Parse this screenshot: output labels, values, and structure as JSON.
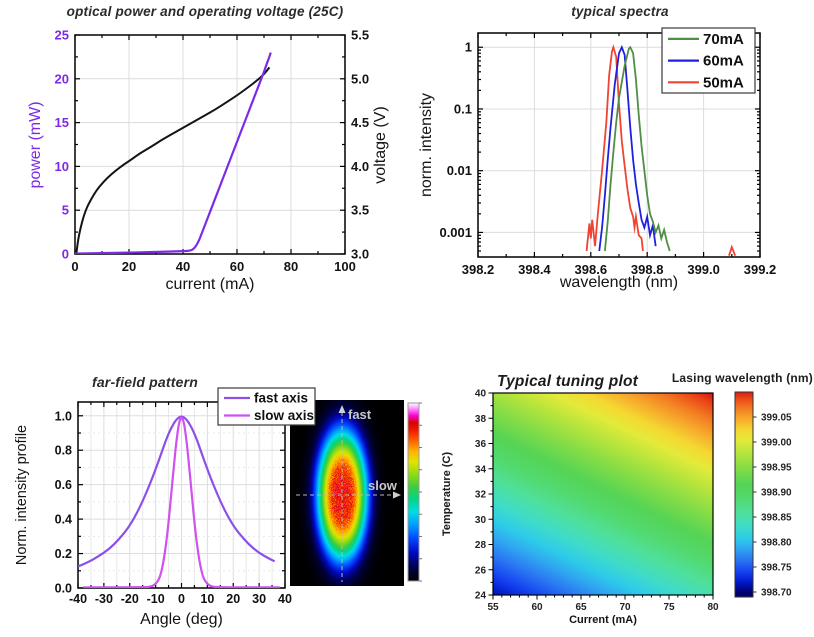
{
  "page": {
    "background": "#ffffff"
  },
  "colors": {
    "power_purple": "#7d2ae8",
    "voltage_black": "#141414",
    "fast_violet": "#8a50e8",
    "slow_magenta": "#d050f0",
    "green_70": "#4f8f44",
    "blue_60": "#1f1fe0",
    "red_50": "#f04432",
    "grid": "#dcdcdc",
    "frame": "#000000",
    "title_gray": "#2b2b2b"
  },
  "chart_data": [
    {
      "id": "liv",
      "type": "line",
      "title": "optical power and operating voltage (25C)",
      "xlabel": "current (mA)",
      "ylabel": "power (mW)",
      "ylabel2": "voltage (V)",
      "xlim": [
        0,
        100
      ],
      "xticks": [
        0,
        20,
        40,
        60,
        80,
        100
      ],
      "ylim": [
        0,
        25
      ],
      "yticks": [
        0,
        5,
        10,
        15,
        20,
        25
      ],
      "y2lim": [
        3.0,
        5.5
      ],
      "y2ticks": [
        3.0,
        3.5,
        4.0,
        4.5,
        5.0,
        5.5
      ],
      "grid": true,
      "series": [
        {
          "name": "power",
          "axis": "left",
          "color": "#7d2ae8",
          "points": [
            [
              0,
              0.05
            ],
            [
              5,
              0.08
            ],
            [
              10,
              0.1
            ],
            [
              15,
              0.13
            ],
            [
              20,
              0.16
            ],
            [
              25,
              0.2
            ],
            [
              30,
              0.24
            ],
            [
              35,
              0.28
            ],
            [
              40,
              0.32
            ],
            [
              42,
              0.36
            ],
            [
              43,
              0.42
            ],
            [
              44,
              0.6
            ],
            [
              45,
              1.0
            ],
            [
              46,
              1.6
            ],
            [
              47,
              2.4
            ],
            [
              48,
              3.2
            ],
            [
              50,
              4.8
            ],
            [
              53,
              7.2
            ],
            [
              56,
              9.6
            ],
            [
              59,
              12.0
            ],
            [
              62,
              14.4
            ],
            [
              65,
              16.8
            ],
            [
              68,
              19.2
            ],
            [
              70,
              20.8
            ],
            [
              71,
              21.7
            ],
            [
              72,
              22.5
            ],
            [
              72.5,
              23.0
            ]
          ]
        },
        {
          "name": "voltage",
          "axis": "right",
          "color": "#141414",
          "points": [
            [
              0.5,
              3.0
            ],
            [
              1,
              3.14
            ],
            [
              2,
              3.29
            ],
            [
              3,
              3.41
            ],
            [
              4,
              3.5
            ],
            [
              5,
              3.57
            ],
            [
              7,
              3.68
            ],
            [
              9,
              3.77
            ],
            [
              12,
              3.87
            ],
            [
              15,
              3.95
            ],
            [
              18,
              4.02
            ],
            [
              21,
              4.08
            ],
            [
              24,
              4.15
            ],
            [
              28,
              4.22
            ],
            [
              32,
              4.3
            ],
            [
              36,
              4.37
            ],
            [
              40,
              4.44
            ],
            [
              44,
              4.51
            ],
            [
              48,
              4.58
            ],
            [
              52,
              4.65
            ],
            [
              56,
              4.73
            ],
            [
              60,
              4.81
            ],
            [
              64,
              4.9
            ],
            [
              67,
              4.97
            ],
            [
              70,
              5.05
            ],
            [
              72,
              5.13
            ]
          ]
        }
      ]
    },
    {
      "id": "spectra",
      "type": "line",
      "title": "typical spectra",
      "xlabel": "wavelength (nm)",
      "ylabel": "norm. intensity",
      "xlim": [
        398.2,
        399.2
      ],
      "xticks": [
        "398.2",
        "398.4",
        "398.6",
        "398.8",
        "399.0",
        "399.2"
      ],
      "yscale": "log",
      "ylim": [
        0.0004,
        1.7
      ],
      "yticks": [
        "1",
        "0.1",
        "0.01",
        "0.001"
      ],
      "legend": {
        "position": "top-right",
        "entries": [
          "70mA",
          "60mA",
          "50mA"
        ]
      },
      "series": [
        {
          "name": "50mA",
          "color": "#f04432",
          "points": [
            [
              398.585,
              0.0005
            ],
            [
              398.595,
              0.0014
            ],
            [
              398.6,
              0.0008
            ],
            [
              398.605,
              0.0016
            ],
            [
              398.615,
              0.0006
            ],
            [
              398.625,
              0.002
            ],
            [
              398.64,
              0.01
            ],
            [
              398.655,
              0.06
            ],
            [
              398.665,
              0.35
            ],
            [
              398.675,
              0.85
            ],
            [
              398.68,
              1.0
            ],
            [
              398.69,
              0.7
            ],
            [
              398.7,
              0.12
            ],
            [
              398.71,
              0.03
            ],
            [
              398.72,
              0.012
            ],
            [
              398.73,
              0.005
            ],
            [
              398.74,
              0.0025
            ],
            [
              398.75,
              0.0018
            ],
            [
              398.755,
              0.0012
            ],
            [
              398.76,
              0.0018
            ],
            [
              398.77,
              0.0009
            ],
            [
              398.78,
              0.0008
            ],
            [
              398.785,
              0.0005
            ]
          ],
          "points2": [
            [
              399.09,
              0.00042
            ],
            [
              399.1,
              0.00058
            ],
            [
              399.112,
              0.00042
            ]
          ]
        },
        {
          "name": "60mA",
          "color": "#1f1fe0",
          "points": [
            [
              398.63,
              0.0005
            ],
            [
              398.64,
              0.0012
            ],
            [
              398.65,
              0.004
            ],
            [
              398.66,
              0.015
            ],
            [
              398.67,
              0.05
            ],
            [
              398.685,
              0.25
            ],
            [
              398.7,
              0.8
            ],
            [
              398.71,
              1.0
            ],
            [
              398.72,
              0.75
            ],
            [
              398.73,
              0.2
            ],
            [
              398.74,
              0.05
            ],
            [
              398.75,
              0.015
            ],
            [
              398.76,
              0.006
            ],
            [
              398.77,
              0.003
            ],
            [
              398.78,
              0.0016
            ],
            [
              398.79,
              0.0012
            ],
            [
              398.8,
              0.0018
            ],
            [
              398.81,
              0.0009
            ],
            [
              398.82,
              0.0013
            ],
            [
              398.83,
              0.0006
            ]
          ]
        },
        {
          "name": "70mA",
          "color": "#4f8f44",
          "points": [
            [
              398.65,
              0.0005
            ],
            [
              398.66,
              0.0015
            ],
            [
              398.67,
              0.006
            ],
            [
              398.68,
              0.02
            ],
            [
              398.69,
              0.06
            ],
            [
              398.7,
              0.15
            ],
            [
              398.72,
              0.5
            ],
            [
              398.735,
              0.95
            ],
            [
              398.74,
              1.0
            ],
            [
              398.75,
              0.8
            ],
            [
              398.76,
              0.3
            ],
            [
              398.77,
              0.08
            ],
            [
              398.78,
              0.025
            ],
            [
              398.79,
              0.01
            ],
            [
              398.8,
              0.004
            ],
            [
              398.81,
              0.002
            ],
            [
              398.82,
              0.0015
            ],
            [
              398.83,
              0.001
            ],
            [
              398.84,
              0.0013
            ],
            [
              398.85,
              0.0008
            ],
            [
              398.86,
              0.0011
            ],
            [
              398.87,
              0.0007
            ],
            [
              398.88,
              0.0005
            ]
          ]
        }
      ]
    },
    {
      "id": "farfield",
      "type": "line",
      "title": "far-field pattern",
      "xlabel": "Angle (deg)",
      "ylabel": "Norm. intensity profile",
      "xlim": [
        -40,
        40
      ],
      "xticks": [
        -40,
        -30,
        -20,
        -10,
        0,
        10,
        20,
        30,
        40
      ],
      "ylim": [
        0,
        1.08
      ],
      "yticks": [
        "0.0",
        "0.2",
        "0.4",
        "0.6",
        "0.8",
        "1.0"
      ],
      "legend": {
        "position": "top-right",
        "entries": [
          "fast axis",
          "slow axis"
        ]
      },
      "series": [
        {
          "name": "fast axis",
          "color": "#8a50e8",
          "points": [
            [
              -40,
              0.125
            ],
            [
              -36,
              0.15
            ],
            [
              -32,
              0.185
            ],
            [
              -28,
              0.225
            ],
            [
              -24,
              0.285
            ],
            [
              -20,
              0.36
            ],
            [
              -16,
              0.47
            ],
            [
              -12,
              0.61
            ],
            [
              -9,
              0.73
            ],
            [
              -6,
              0.86
            ],
            [
              -4,
              0.93
            ],
            [
              -2,
              0.98
            ],
            [
              0,
              1.0
            ],
            [
              2,
              0.98
            ],
            [
              4,
              0.93
            ],
            [
              6,
              0.86
            ],
            [
              9,
              0.73
            ],
            [
              12,
              0.61
            ],
            [
              16,
              0.47
            ],
            [
              20,
              0.36
            ],
            [
              24,
              0.285
            ],
            [
              28,
              0.225
            ],
            [
              32,
              0.185
            ],
            [
              36,
              0.155
            ]
          ]
        },
        {
          "name": "slow axis",
          "color": "#d050f0",
          "points": [
            [
              -38,
              0.004
            ],
            [
              -14,
              0.004
            ],
            [
              -11,
              0.01
            ],
            [
              -9,
              0.04
            ],
            [
              -8,
              0.08
            ],
            [
              -7,
              0.15
            ],
            [
              -6,
              0.25
            ],
            [
              -5,
              0.38
            ],
            [
              -4,
              0.54
            ],
            [
              -3,
              0.7
            ],
            [
              -2,
              0.85
            ],
            [
              -1,
              0.96
            ],
            [
              0,
              1.0
            ],
            [
              1,
              0.96
            ],
            [
              2,
              0.85
            ],
            [
              3,
              0.7
            ],
            [
              4,
              0.54
            ],
            [
              5,
              0.38
            ],
            [
              6,
              0.25
            ],
            [
              7,
              0.15
            ],
            [
              8,
              0.08
            ],
            [
              9,
              0.04
            ],
            [
              11,
              0.01
            ],
            [
              14,
              0.004
            ],
            [
              38,
              0.004
            ]
          ]
        }
      ],
      "beam_image": {
        "label_fast": "fast",
        "label_slow": "slow",
        "center": [
          52,
          95
        ],
        "sigma": [
          20,
          52
        ],
        "amplitude": 0.88,
        "super_exponent": 1.5,
        "colormap": [
          [
            0,
            "#000000"
          ],
          [
            0.08,
            "#00004a"
          ],
          [
            0.16,
            "#0008c0"
          ],
          [
            0.24,
            "#0048ff"
          ],
          [
            0.32,
            "#00a0ff"
          ],
          [
            0.39,
            "#00dce4"
          ],
          [
            0.46,
            "#00d688"
          ],
          [
            0.53,
            "#3ecb3e"
          ],
          [
            0.6,
            "#8cdc14"
          ],
          [
            0.67,
            "#e0e400"
          ],
          [
            0.73,
            "#ffb400"
          ],
          [
            0.79,
            "#ff6000"
          ],
          [
            0.85,
            "#f01800"
          ],
          [
            0.89,
            "#d80000"
          ],
          [
            0.93,
            "#ff00d0"
          ],
          [
            0.965,
            "#ff7cff"
          ],
          [
            1,
            "#ffffff"
          ]
        ]
      }
    },
    {
      "id": "tuning",
      "type": "heatmap",
      "title": "Typical tuning plot",
      "xlabel": "Current (mA)",
      "ylabel": "Temperature (C)",
      "colorbar_title": "Lasing wavelength (nm)",
      "xlim": [
        55,
        80
      ],
      "xticks": [
        55,
        60,
        65,
        70,
        75,
        80
      ],
      "ylim": [
        24,
        40
      ],
      "yticks": [
        24,
        26,
        28,
        30,
        32,
        34,
        36,
        38,
        40
      ],
      "zlim": [
        398.7,
        399.1
      ],
      "colorbar_ticks": [
        "399.05",
        "399.00",
        "398.95",
        "398.90",
        "398.85",
        "398.80",
        "398.75",
        "398.70"
      ],
      "model": {
        "base": 398.715,
        "dT": 0.0158,
        "dI": 0.0054,
        "Tref": 24,
        "Iref": 55
      },
      "colormap": [
        [
          0,
          "#00006e"
        ],
        [
          0.05,
          "#0018c8"
        ],
        [
          0.1,
          "#1440f0"
        ],
        [
          0.16,
          "#2a74f2"
        ],
        [
          0.22,
          "#2fa8f0"
        ],
        [
          0.27,
          "#2ecbe9"
        ],
        [
          0.33,
          "#3fdcc8"
        ],
        [
          0.4,
          "#4fe09b"
        ],
        [
          0.47,
          "#52d96e"
        ],
        [
          0.54,
          "#55d455"
        ],
        [
          0.62,
          "#84dc46"
        ],
        [
          0.7,
          "#b9e53c"
        ],
        [
          0.76,
          "#e3ea3a"
        ],
        [
          0.81,
          "#f5d832"
        ],
        [
          0.87,
          "#f6a72b"
        ],
        [
          0.92,
          "#f37b21"
        ],
        [
          0.97,
          "#ea4518"
        ],
        [
          1,
          "#d81e10"
        ]
      ]
    }
  ]
}
